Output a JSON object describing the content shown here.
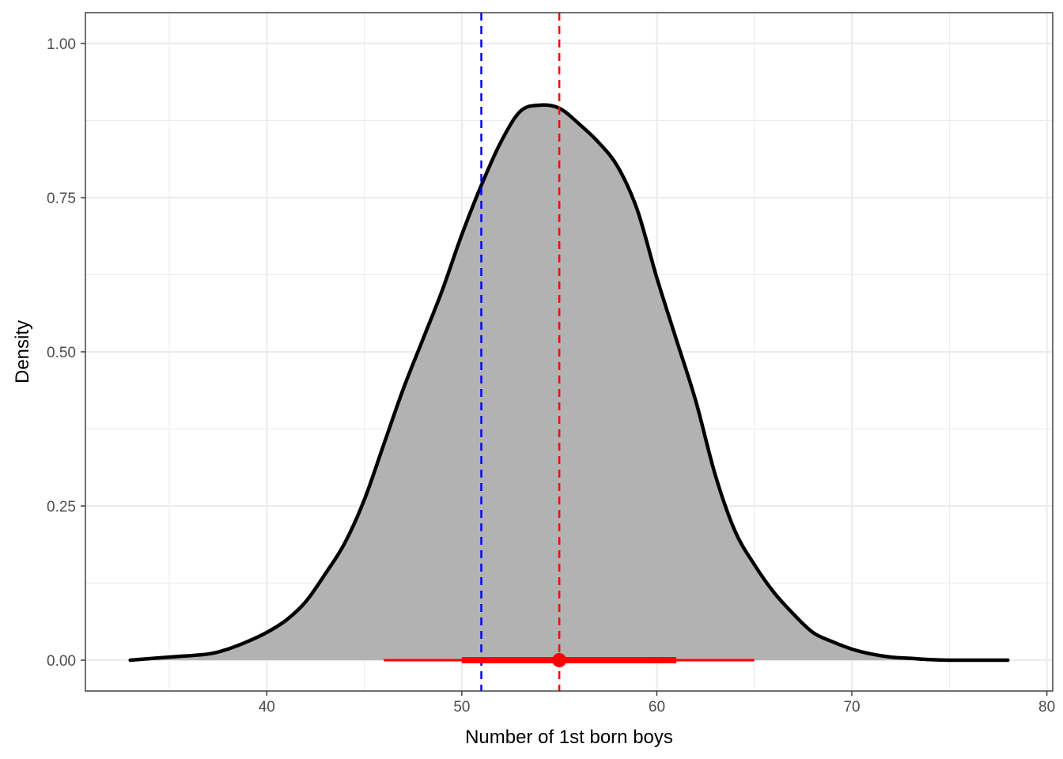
{
  "chart_data": {
    "type": "area",
    "title": "",
    "xlabel": "Number of 1st born boys",
    "ylabel": "Density",
    "xlim": [
      30.7,
      80.3
    ],
    "ylim": [
      -0.05,
      1.05
    ],
    "x_ticks": [
      40,
      50,
      60,
      70,
      80
    ],
    "x_tick_labels": [
      "40",
      "50",
      "60",
      "70",
      "80"
    ],
    "x_minor_ticks": [
      35,
      45,
      55,
      65,
      75
    ],
    "y_ticks": [
      0,
      0.25,
      0.5,
      0.75,
      1.0
    ],
    "y_tick_labels": [
      "0.00",
      "0.25",
      "0.50",
      "0.75",
      "1.00"
    ],
    "y_minor_ticks": [
      0.125,
      0.375,
      0.625,
      0.875
    ],
    "grid": true,
    "density": {
      "x": [
        33,
        35,
        37,
        38,
        39,
        40,
        41,
        42,
        43,
        44,
        45,
        46,
        47,
        48,
        49,
        50,
        51,
        52,
        53,
        54,
        55,
        56,
        57,
        58,
        59,
        60,
        61,
        62,
        63,
        64,
        65,
        66,
        67,
        68,
        69,
        70,
        71,
        72,
        73,
        74,
        75,
        76,
        77,
        78
      ],
      "y": [
        0.0,
        0.005,
        0.01,
        0.018,
        0.03,
        0.045,
        0.065,
        0.095,
        0.14,
        0.19,
        0.26,
        0.35,
        0.44,
        0.52,
        0.6,
        0.69,
        0.77,
        0.84,
        0.89,
        0.9,
        0.895,
        0.87,
        0.84,
        0.8,
        0.73,
        0.62,
        0.52,
        0.42,
        0.3,
        0.21,
        0.155,
        0.11,
        0.075,
        0.045,
        0.03,
        0.018,
        0.01,
        0.005,
        0.003,
        0.001,
        0.0,
        0.0,
        0.0,
        0.0
      ],
      "fill_color": "#b2b2b2",
      "line_color": "#000000"
    },
    "reference_lines": [
      {
        "x": 51,
        "color": "#0000ff",
        "style": "dashed"
      },
      {
        "x": 55,
        "color": "#ff0000",
        "style": "dashed"
      }
    ],
    "interval": {
      "point": 55,
      "inner": [
        50,
        61
      ],
      "outer": [
        46,
        65
      ],
      "y": 0,
      "color": "#ff0000"
    }
  }
}
